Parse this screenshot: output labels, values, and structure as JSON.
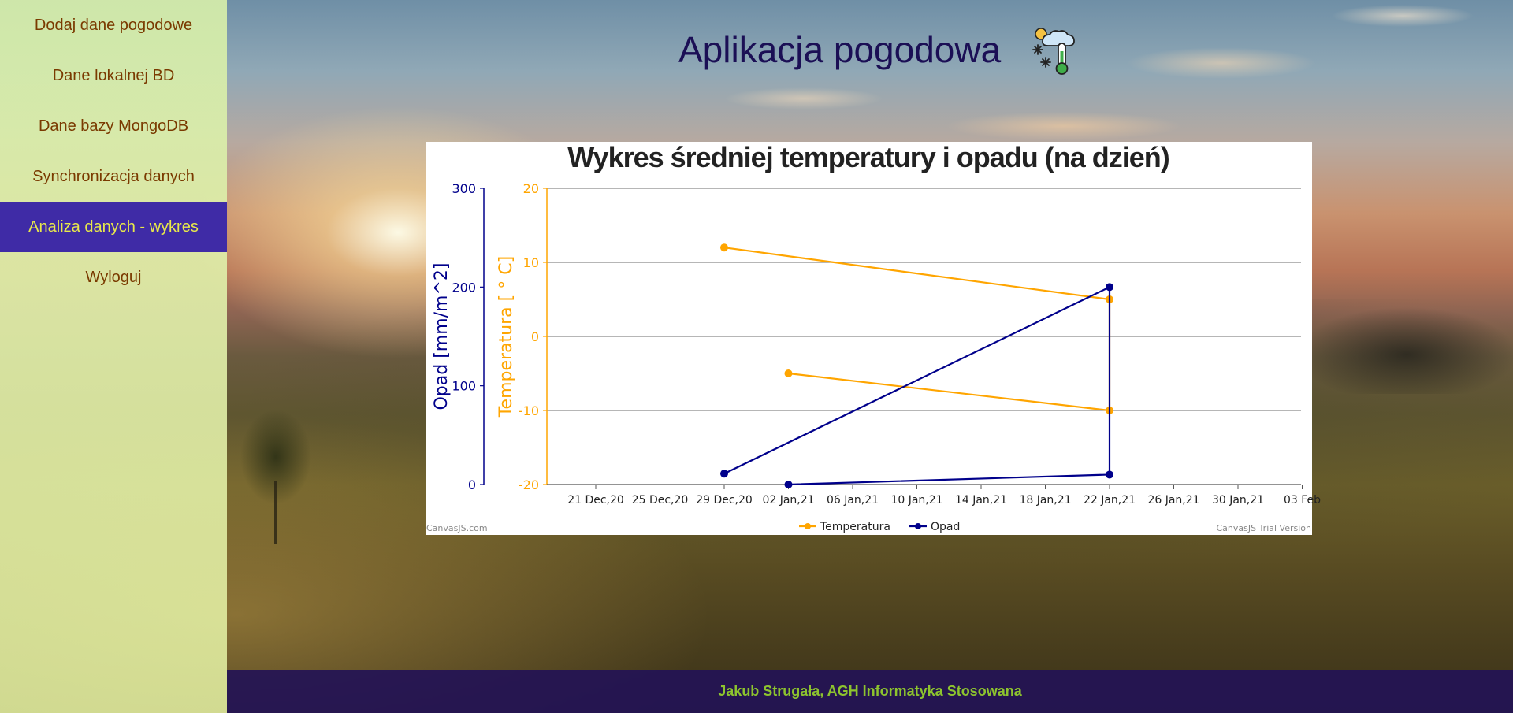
{
  "app": {
    "title": "Aplikacja pogodowa",
    "icon": "weather-thermometer-icon"
  },
  "sidebar": {
    "items": [
      {
        "label": "Dodaj dane pogodowe",
        "active": false
      },
      {
        "label": "Dane lokalnej BD",
        "active": false
      },
      {
        "label": "Dane bazy MongoDB",
        "active": false
      },
      {
        "label": "Synchronizacja danych",
        "active": false
      },
      {
        "label": "Analiza danych - wykres",
        "active": true
      },
      {
        "label": "Wyloguj",
        "active": false
      }
    ],
    "active_color": "#3f2ba6",
    "active_text_color": "#e8e94a"
  },
  "footer": {
    "text": "Jakub Strugała, AGH Informatyka Stosowana"
  },
  "chart_data": {
    "type": "line",
    "title": "Wykres średniej temperatury i opadu (na dzień)",
    "credit": "CanvasJS.com",
    "trial_label": "CanvasJS Trial Version",
    "x_ticks": [
      "21 Dec,20",
      "25 Dec,20",
      "29 Dec,20",
      "02 Jan,21",
      "06 Jan,21",
      "10 Jan,21",
      "14 Jan,21",
      "18 Jan,21",
      "22 Jan,21",
      "26 Jan,21",
      "30 Jan,21",
      "03 Feb"
    ],
    "y_primary": {
      "label": "Temperatura [ ° C]",
      "ticks": [
        20,
        10,
        0,
        -10,
        -20
      ],
      "range": [
        -20,
        20
      ],
      "color": "#ffa500"
    },
    "y_secondary": {
      "label": "Opad [mm/m^2]",
      "ticks": [
        300,
        200,
        100,
        0
      ],
      "range": [
        0,
        300
      ],
      "color": "#00008b"
    },
    "grid": true,
    "legend": "bottom-center",
    "series": [
      {
        "name": "Temperatura",
        "color": "#ffa500",
        "axis": "primary",
        "points": [
          [
            "2020-12-29",
            12.0
          ],
          [
            "2021-01-22",
            5.0
          ],
          [
            "2021-01-22",
            -10.0
          ],
          [
            "2021-01-02",
            -5.0
          ]
        ]
      },
      {
        "name": "Opad",
        "color": "#00008b",
        "axis": "secondary",
        "points": [
          [
            "2020-12-29",
            11
          ],
          [
            "2021-01-22",
            200
          ],
          [
            "2021-01-22",
            10
          ],
          [
            "2021-01-02",
            0
          ]
        ]
      }
    ]
  }
}
